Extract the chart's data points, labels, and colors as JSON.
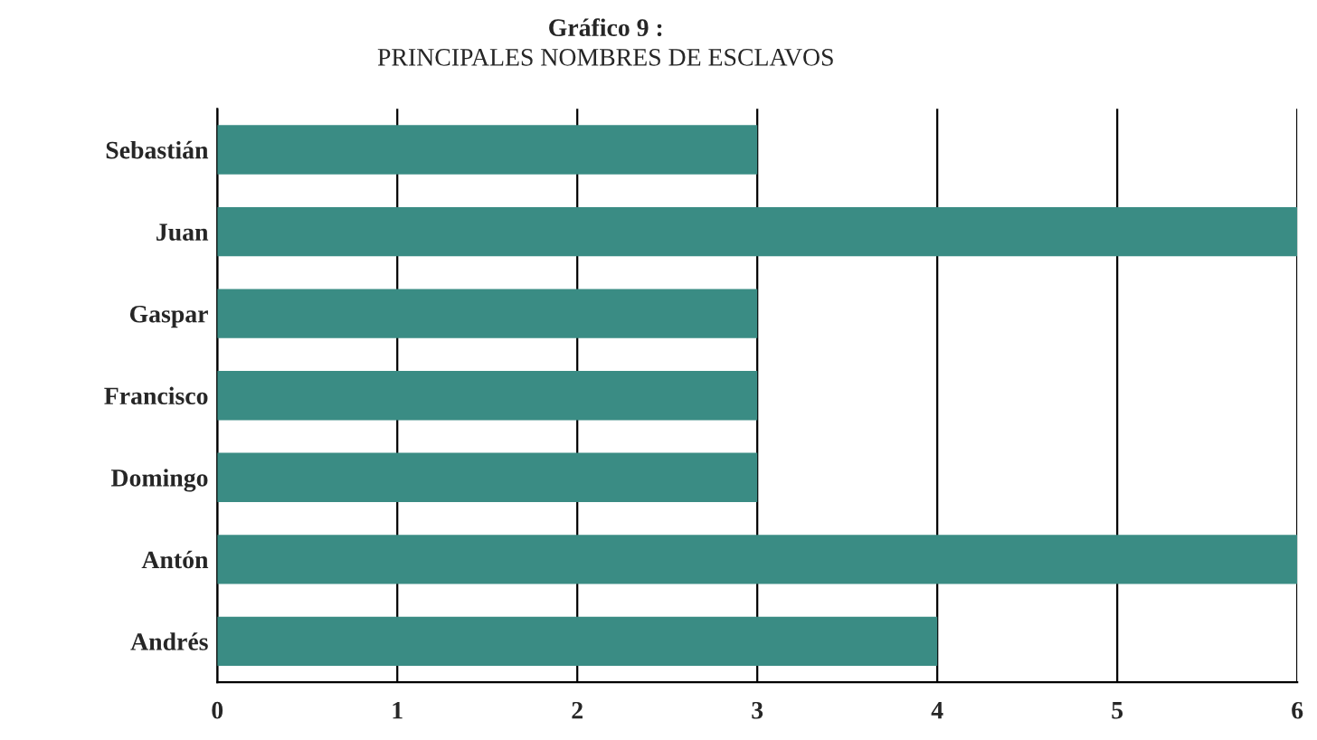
{
  "chart_data": {
    "type": "bar",
    "orientation": "horizontal",
    "title": "Gráfico 9 :",
    "subtitle": "PRINCIPALES NOMBRES DE ESCLAVOS",
    "categories": [
      "Sebastián",
      "Juan",
      "Gaspar",
      "Francisco",
      "Domingo",
      "Antón",
      "Andrés"
    ],
    "values": [
      3,
      6,
      3,
      3,
      3,
      6,
      4
    ],
    "color": "#3a8c84",
    "xlim": [
      0,
      6
    ],
    "xticks": [
      0,
      1,
      2,
      3,
      4,
      5,
      6
    ],
    "grid": "x"
  }
}
